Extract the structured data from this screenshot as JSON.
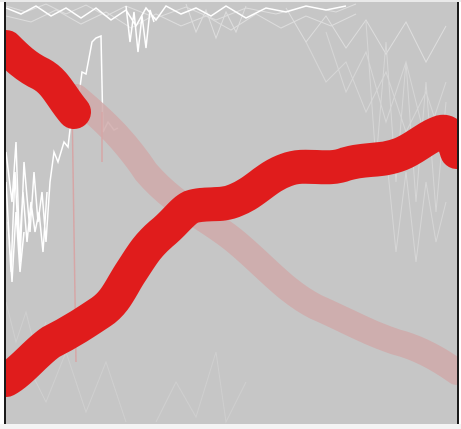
{
  "game": {
    "view": "trace-scene",
    "colors": {
      "background": "#c6c6c6",
      "frame_border": "#1b1b1b",
      "primary_stroke": "#e01c1c",
      "faded_stroke": "#d4a8a8",
      "noise_white": "#ffffff",
      "noise_light": "#e2e2e2"
    },
    "strokes": [
      {
        "name": "rising-red-trace",
        "style": "solid"
      },
      {
        "name": "falling-red-trace-upper",
        "style": "solid"
      },
      {
        "name": "falling-faded-trace",
        "style": "faded"
      }
    ],
    "noise_layers": [
      "white-noise-left",
      "light-noise-top",
      "light-noise-right",
      "light-noise-bottom"
    ]
  }
}
